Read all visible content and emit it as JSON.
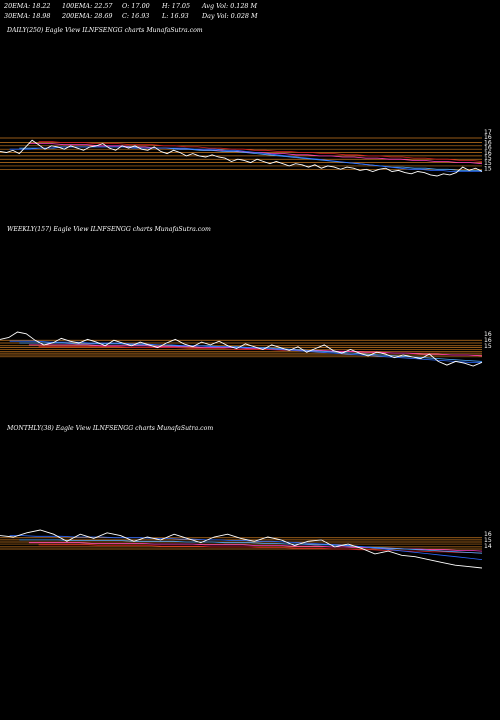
{
  "header": {
    "ema20": "20EMA: 18.22",
    "ema100": "100EMA: 22.57",
    "open": "O: 17.00",
    "high": "H: 17.05",
    "avg_vol": "Avg Vol: 0.128  M",
    "ema30": "30EMA: 18.98",
    "ema200": "200EMA: 28.69",
    "close": "C: 16.93",
    "low": "L: 16.93",
    "day_vol": "Day Vol: 0.028  M"
  },
  "colors": {
    "background": "#000000",
    "price": "#ffffff",
    "ema_short": "#2e6bff",
    "ema_mid": "#4aa8ff",
    "ema_long": "#ff3fbf",
    "ema_long2": "#d02020",
    "levels": "#c87820"
  },
  "chart_data": [
    {
      "type": "line",
      "title": "DAILY(250) Eagle   View  ILNFSENGG charts MunafaSutra.com",
      "y_labels": [
        "17",
        "16",
        "16",
        "16",
        "16",
        "15",
        "15",
        "15"
      ],
      "series": [
        {
          "values": [
            17.4,
            17.3,
            17.5,
            17.2,
            17.8,
            18.4,
            18.0,
            17.6,
            17.9,
            17.8,
            17.6,
            17.9,
            17.7,
            17.5,
            17.8,
            17.9,
            18.1,
            17.7,
            17.5,
            17.9,
            17.7,
            17.9,
            17.6,
            17.5,
            17.8,
            17.4,
            17.2,
            17.5,
            17.3,
            17.0,
            17.2,
            17.0,
            16.9,
            17.1,
            16.9,
            16.8,
            16.5,
            16.7,
            16.6,
            16.4,
            16.7,
            16.5,
            16.3,
            16.5,
            16.3,
            16.1,
            16.3,
            16.2,
            16.0,
            16.2,
            15.9,
            16.1,
            16.0,
            15.8,
            16.0,
            15.9,
            15.7,
            15.8,
            15.6,
            15.8,
            15.9,
            15.6,
            15.7,
            15.5,
            15.4,
            15.6,
            15.5,
            15.3,
            15.2,
            15.4,
            15.3,
            15.5,
            16.0,
            15.7,
            15.9,
            15.6
          ]
        },
        {
          "values": [
            17.6,
            17.6,
            17.6,
            17.7,
            17.7,
            17.8,
            17.8,
            17.8,
            17.8,
            17.8,
            17.8,
            17.8,
            17.7,
            17.7,
            17.7,
            17.7,
            17.7,
            17.7,
            17.6,
            17.6,
            17.6,
            17.5,
            17.5,
            17.4,
            17.3,
            17.2,
            17.1,
            17.0,
            16.9,
            16.8,
            16.7,
            16.6,
            16.5,
            16.4,
            16.3,
            16.2,
            16.1,
            16.0,
            15.9,
            15.8,
            15.8,
            15.7,
            15.7,
            15.6,
            15.6,
            15.6,
            15.6
          ]
        },
        {
          "values": [
            17.7,
            17.7,
            17.7,
            17.7,
            17.8,
            17.8,
            17.8,
            17.8,
            17.8,
            17.8,
            17.8,
            17.7,
            17.7,
            17.7,
            17.6,
            17.6,
            17.5,
            17.5,
            17.4,
            17.4,
            17.3,
            17.2,
            17.1,
            17.0,
            16.9,
            16.8,
            16.7,
            16.6,
            16.5,
            16.4,
            16.3,
            16.2,
            16.1,
            16.0,
            16.0,
            15.9,
            15.9,
            15.8,
            15.8,
            15.7,
            15.7,
            15.7
          ]
        },
        {
          "values": [
            18.1,
            18.1,
            18.1,
            18.0,
            18.0,
            18.0,
            17.9,
            17.9,
            17.9,
            17.8,
            17.8,
            17.7,
            17.7,
            17.6,
            17.6,
            17.5,
            17.5,
            17.4,
            17.4,
            17.3,
            17.3,
            17.2,
            17.2,
            17.1,
            17.1,
            17.0,
            17.0,
            16.9,
            16.9,
            16.8,
            16.8,
            16.7,
            16.7,
            16.6,
            16.6,
            16.5,
            16.5,
            16.4,
            16.4,
            16.3
          ]
        },
        {
          "values": [
            18.3,
            18.3,
            18.2,
            18.2,
            18.2,
            18.1,
            18.1,
            18.1,
            18.0,
            18.0,
            18.0,
            17.9,
            17.9,
            17.8,
            17.8,
            17.7,
            17.7,
            17.6,
            17.6,
            17.5,
            17.5,
            17.4,
            17.4,
            17.3,
            17.3,
            17.2,
            17.2,
            17.1,
            17.1,
            17.0,
            17.0,
            16.9,
            16.9,
            16.8,
            16.8,
            16.7,
            16.7,
            16.6,
            16.6,
            16.5
          ]
        }
      ],
      "levels": [
        18.6,
        18.2,
        17.9,
        17.6,
        17.3,
        17.0,
        16.7,
        16.4,
        16.1,
        15.8
      ]
    },
    {
      "type": "line",
      "title": "WEEKLY(157) Eagle   View  ILNFSENGG charts MunafaSutra.com",
      "y_labels": [
        "16",
        "16",
        "15"
      ],
      "series": [
        {
          "values": [
            18.4,
            18.6,
            19.2,
            19.0,
            18.3,
            17.8,
            18.0,
            18.5,
            18.2,
            18.0,
            18.4,
            18.1,
            17.7,
            18.3,
            18.0,
            17.7,
            18.1,
            17.8,
            17.5,
            18.0,
            18.4,
            17.9,
            17.6,
            18.1,
            17.8,
            18.2,
            17.7,
            17.4,
            17.9,
            17.6,
            17.3,
            17.8,
            17.5,
            17.2,
            17.6,
            17.0,
            17.4,
            17.8,
            17.2,
            16.9,
            17.3,
            16.9,
            16.6,
            17.0,
            16.8,
            16.4,
            16.7,
            16.5,
            16.3,
            16.8,
            16.0,
            15.6,
            16.0,
            15.8,
            15.5,
            15.9
          ]
        },
        {
          "values": [
            18.2,
            18.2,
            18.2,
            18.1,
            18.1,
            18.1,
            18.0,
            18.0,
            18.0,
            17.9,
            17.9,
            17.8,
            17.8,
            17.7,
            17.7,
            17.6,
            17.6,
            17.5,
            17.5,
            17.4,
            17.3,
            17.2,
            17.1,
            17.0,
            16.9,
            16.8,
            16.7,
            16.6,
            16.5,
            16.4,
            16.3,
            16.2,
            16.1,
            16.0,
            15.9,
            15.9
          ]
        },
        {
          "values": [
            18.0,
            18.0,
            18.0,
            18.0,
            17.9,
            17.9,
            17.9,
            17.9,
            17.8,
            17.8,
            17.8,
            17.7,
            17.7,
            17.7,
            17.6,
            17.6,
            17.5,
            17.5,
            17.4,
            17.3,
            17.2,
            17.1,
            17.0,
            16.9,
            16.8,
            16.7,
            16.6,
            16.5,
            16.4,
            16.3,
            16.2,
            16.1,
            16.0
          ]
        },
        {
          "values": [
            17.8,
            17.8,
            17.8,
            17.8,
            17.8,
            17.7,
            17.7,
            17.7,
            17.7,
            17.6,
            17.6,
            17.6,
            17.5,
            17.5,
            17.5,
            17.4,
            17.4,
            17.3,
            17.3,
            17.2,
            17.2,
            17.1,
            17.1,
            17.0,
            17.0,
            16.9,
            16.9,
            16.8,
            16.8,
            16.7,
            16.7,
            16.6
          ]
        },
        {
          "values": [
            17.6,
            17.6,
            17.6,
            17.6,
            17.6,
            17.6,
            17.5,
            17.5,
            17.5,
            17.5,
            17.4,
            17.4,
            17.4,
            17.3,
            17.3,
            17.3,
            17.2,
            17.2,
            17.2,
            17.1,
            17.1,
            17.0,
            17.0,
            16.9,
            16.9,
            16.8,
            16.8,
            16.7,
            16.7,
            16.6
          ]
        }
      ],
      "levels": [
        18.3,
        18.0,
        17.7,
        17.5,
        17.3,
        17.1,
        16.9,
        16.7,
        16.5
      ]
    },
    {
      "type": "line",
      "title": "MONTHLY(38) Eagle   View  ILNFSENGG charts MunafaSutra.com",
      "y_labels": [
        "16",
        "15",
        "14"
      ],
      "series": [
        {
          "values": [
            18.2,
            18.0,
            18.6,
            19.0,
            18.4,
            17.4,
            18.4,
            17.8,
            18.6,
            18.2,
            17.4,
            18.0,
            17.6,
            18.4,
            17.8,
            17.2,
            18.0,
            18.4,
            17.8,
            17.4,
            18.0,
            17.6,
            16.8,
            17.4,
            17.6,
            16.6,
            17.0,
            16.4,
            15.6,
            16.0,
            15.4,
            15.2,
            14.8,
            14.4,
            14.0,
            13.8,
            13.6
          ]
        },
        {
          "values": [
            18.2,
            18.2,
            18.1,
            18.1,
            18.1,
            18.0,
            18.0,
            18.0,
            17.9,
            17.9,
            17.9,
            17.8,
            17.8,
            17.7,
            17.7,
            17.6,
            17.6,
            17.5,
            17.5,
            17.4,
            17.4,
            17.3,
            17.2,
            17.1,
            17.0,
            16.9,
            16.8,
            16.6,
            16.4,
            16.2,
            16.0,
            15.8,
            15.6,
            15.4,
            15.2,
            15.0,
            14.8
          ]
        },
        {
          "values": [
            17.6,
            17.6,
            17.6,
            17.6,
            17.5,
            17.5,
            17.5,
            17.5,
            17.5,
            17.4,
            17.4,
            17.4,
            17.4,
            17.3,
            17.3,
            17.3,
            17.2,
            17.2,
            17.2,
            17.1,
            17.1,
            17.0,
            17.0,
            16.9,
            16.9,
            16.8,
            16.7,
            16.6,
            16.5,
            16.4,
            16.3,
            16.2,
            16.1,
            16.0,
            15.9,
            15.8,
            15.7
          ]
        },
        {
          "values": [
            17.2,
            17.2,
            17.2,
            17.2,
            17.2,
            17.1,
            17.1,
            17.1,
            17.1,
            17.1,
            17.0,
            17.0,
            17.0,
            17.0,
            16.9,
            16.9,
            16.9,
            16.9,
            16.8,
            16.8,
            16.8,
            16.7,
            16.7,
            16.7,
            16.6,
            16.6,
            16.5,
            16.5,
            16.4,
            16.4,
            16.3,
            16.3,
            16.2,
            16.2,
            16.1,
            16.1,
            16.0
          ]
        },
        {
          "values": [
            16.9,
            16.9,
            16.9,
            16.9,
            16.9,
            16.8,
            16.8,
            16.8,
            16.8,
            16.8,
            16.7,
            16.7,
            16.7,
            16.7,
            16.6,
            16.6,
            16.6,
            16.6,
            16.5,
            16.5,
            16.5,
            16.4,
            16.4,
            16.4,
            16.3,
            16.3,
            16.2,
            16.2,
            16.1,
            16.1,
            16.0,
            16.0,
            15.9,
            15.9,
            15.8,
            15.8,
            15.7
          ]
        }
      ],
      "levels": [
        17.9,
        17.6,
        17.3,
        17.0,
        16.6,
        16.3
      ]
    }
  ]
}
